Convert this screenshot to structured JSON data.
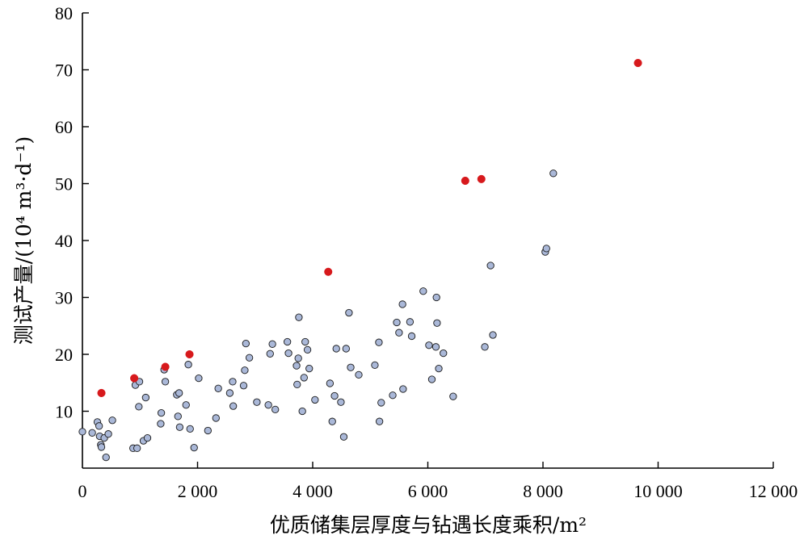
{
  "chart_data": {
    "type": "scatter",
    "xlabel": "优质储集层厚度与钻遇长度乘积/m²",
    "ylabel": "测试产量/(10⁴ m³·d⁻¹)",
    "xlim": [
      0,
      12000
    ],
    "ylim": [
      0,
      80
    ],
    "x_ticks": [
      0,
      2000,
      4000,
      6000,
      8000,
      10000,
      12000
    ],
    "x_tick_labels": [
      "0",
      "2 000",
      "4 000",
      "6 000",
      "8 000",
      "10 000",
      "12 000"
    ],
    "y_ticks": [
      10,
      20,
      30,
      40,
      50,
      60,
      70,
      80
    ],
    "y_tick_labels": [
      "10",
      "20",
      "30",
      "40",
      "50",
      "60",
      "70",
      "80"
    ],
    "grid": false,
    "legend": "none",
    "series": [
      {
        "color": "#aab8d8",
        "stroke": "#1a1a1a",
        "points": [
          [
            0,
            6.4
          ],
          [
            170,
            6.2
          ],
          [
            260,
            8.1
          ],
          [
            290,
            7.4
          ],
          [
            300,
            5.6
          ],
          [
            320,
            4.1
          ],
          [
            330,
            3.7
          ],
          [
            380,
            5.3
          ],
          [
            410,
            1.9
          ],
          [
            450,
            6.0
          ],
          [
            520,
            8.4
          ],
          [
            880,
            3.5
          ],
          [
            920,
            14.6
          ],
          [
            950,
            3.5
          ],
          [
            980,
            10.8
          ],
          [
            990,
            15.2
          ],
          [
            1060,
            4.8
          ],
          [
            1100,
            12.4
          ],
          [
            1130,
            5.3
          ],
          [
            1360,
            7.8
          ],
          [
            1370,
            9.7
          ],
          [
            1420,
            17.3
          ],
          [
            1440,
            15.2
          ],
          [
            1640,
            12.9
          ],
          [
            1660,
            9.1
          ],
          [
            1680,
            13.2
          ],
          [
            1690,
            7.2
          ],
          [
            1800,
            11.1
          ],
          [
            1840,
            18.2
          ],
          [
            1870,
            6.9
          ],
          [
            1940,
            3.6
          ],
          [
            2020,
            15.8
          ],
          [
            2180,
            6.6
          ],
          [
            2320,
            8.8
          ],
          [
            2360,
            14.0
          ],
          [
            2560,
            13.2
          ],
          [
            2610,
            15.2
          ],
          [
            2620,
            10.9
          ],
          [
            2800,
            14.5
          ],
          [
            2820,
            17.2
          ],
          [
            2840,
            21.9
          ],
          [
            2900,
            19.4
          ],
          [
            3030,
            11.6
          ],
          [
            3230,
            11.1
          ],
          [
            3260,
            20.1
          ],
          [
            3300,
            21.8
          ],
          [
            3350,
            10.3
          ],
          [
            3560,
            22.2
          ],
          [
            3580,
            20.2
          ],
          [
            3720,
            18.0
          ],
          [
            3730,
            14.7
          ],
          [
            3750,
            19.3
          ],
          [
            3760,
            26.5
          ],
          [
            3820,
            10.0
          ],
          [
            3850,
            15.9
          ],
          [
            3870,
            22.2
          ],
          [
            3910,
            20.8
          ],
          [
            3940,
            17.5
          ],
          [
            4040,
            12.0
          ],
          [
            4300,
            14.9
          ],
          [
            4340,
            8.2
          ],
          [
            4380,
            12.7
          ],
          [
            4410,
            21.0
          ],
          [
            4490,
            11.6
          ],
          [
            4540,
            5.5
          ],
          [
            4580,
            21.0
          ],
          [
            4630,
            27.3
          ],
          [
            4660,
            17.7
          ],
          [
            4800,
            16.4
          ],
          [
            5080,
            18.1
          ],
          [
            5150,
            22.1
          ],
          [
            5160,
            8.2
          ],
          [
            5190,
            11.5
          ],
          [
            5390,
            12.8
          ],
          [
            5460,
            25.6
          ],
          [
            5500,
            23.8
          ],
          [
            5560,
            28.8
          ],
          [
            5570,
            13.9
          ],
          [
            5690,
            25.7
          ],
          [
            5720,
            23.2
          ],
          [
            5920,
            31.1
          ],
          [
            6020,
            21.6
          ],
          [
            6070,
            15.6
          ],
          [
            6140,
            21.3
          ],
          [
            6150,
            30.0
          ],
          [
            6160,
            25.5
          ],
          [
            6190,
            17.5
          ],
          [
            6270,
            20.2
          ],
          [
            6440,
            12.6
          ],
          [
            6990,
            21.3
          ],
          [
            7090,
            35.6
          ],
          [
            7130,
            23.4
          ],
          [
            8040,
            38.0
          ],
          [
            8060,
            38.6
          ],
          [
            8180,
            51.8
          ]
        ]
      },
      {
        "color": "#d7191c",
        "stroke": "#d7191c",
        "points": [
          [
            330,
            13.2
          ],
          [
            900,
            15.8
          ],
          [
            1440,
            17.8
          ],
          [
            1860,
            20.0
          ],
          [
            4270,
            34.5
          ],
          [
            6650,
            50.5
          ],
          [
            6930,
            50.8
          ],
          [
            9650,
            71.2
          ]
        ]
      }
    ]
  }
}
